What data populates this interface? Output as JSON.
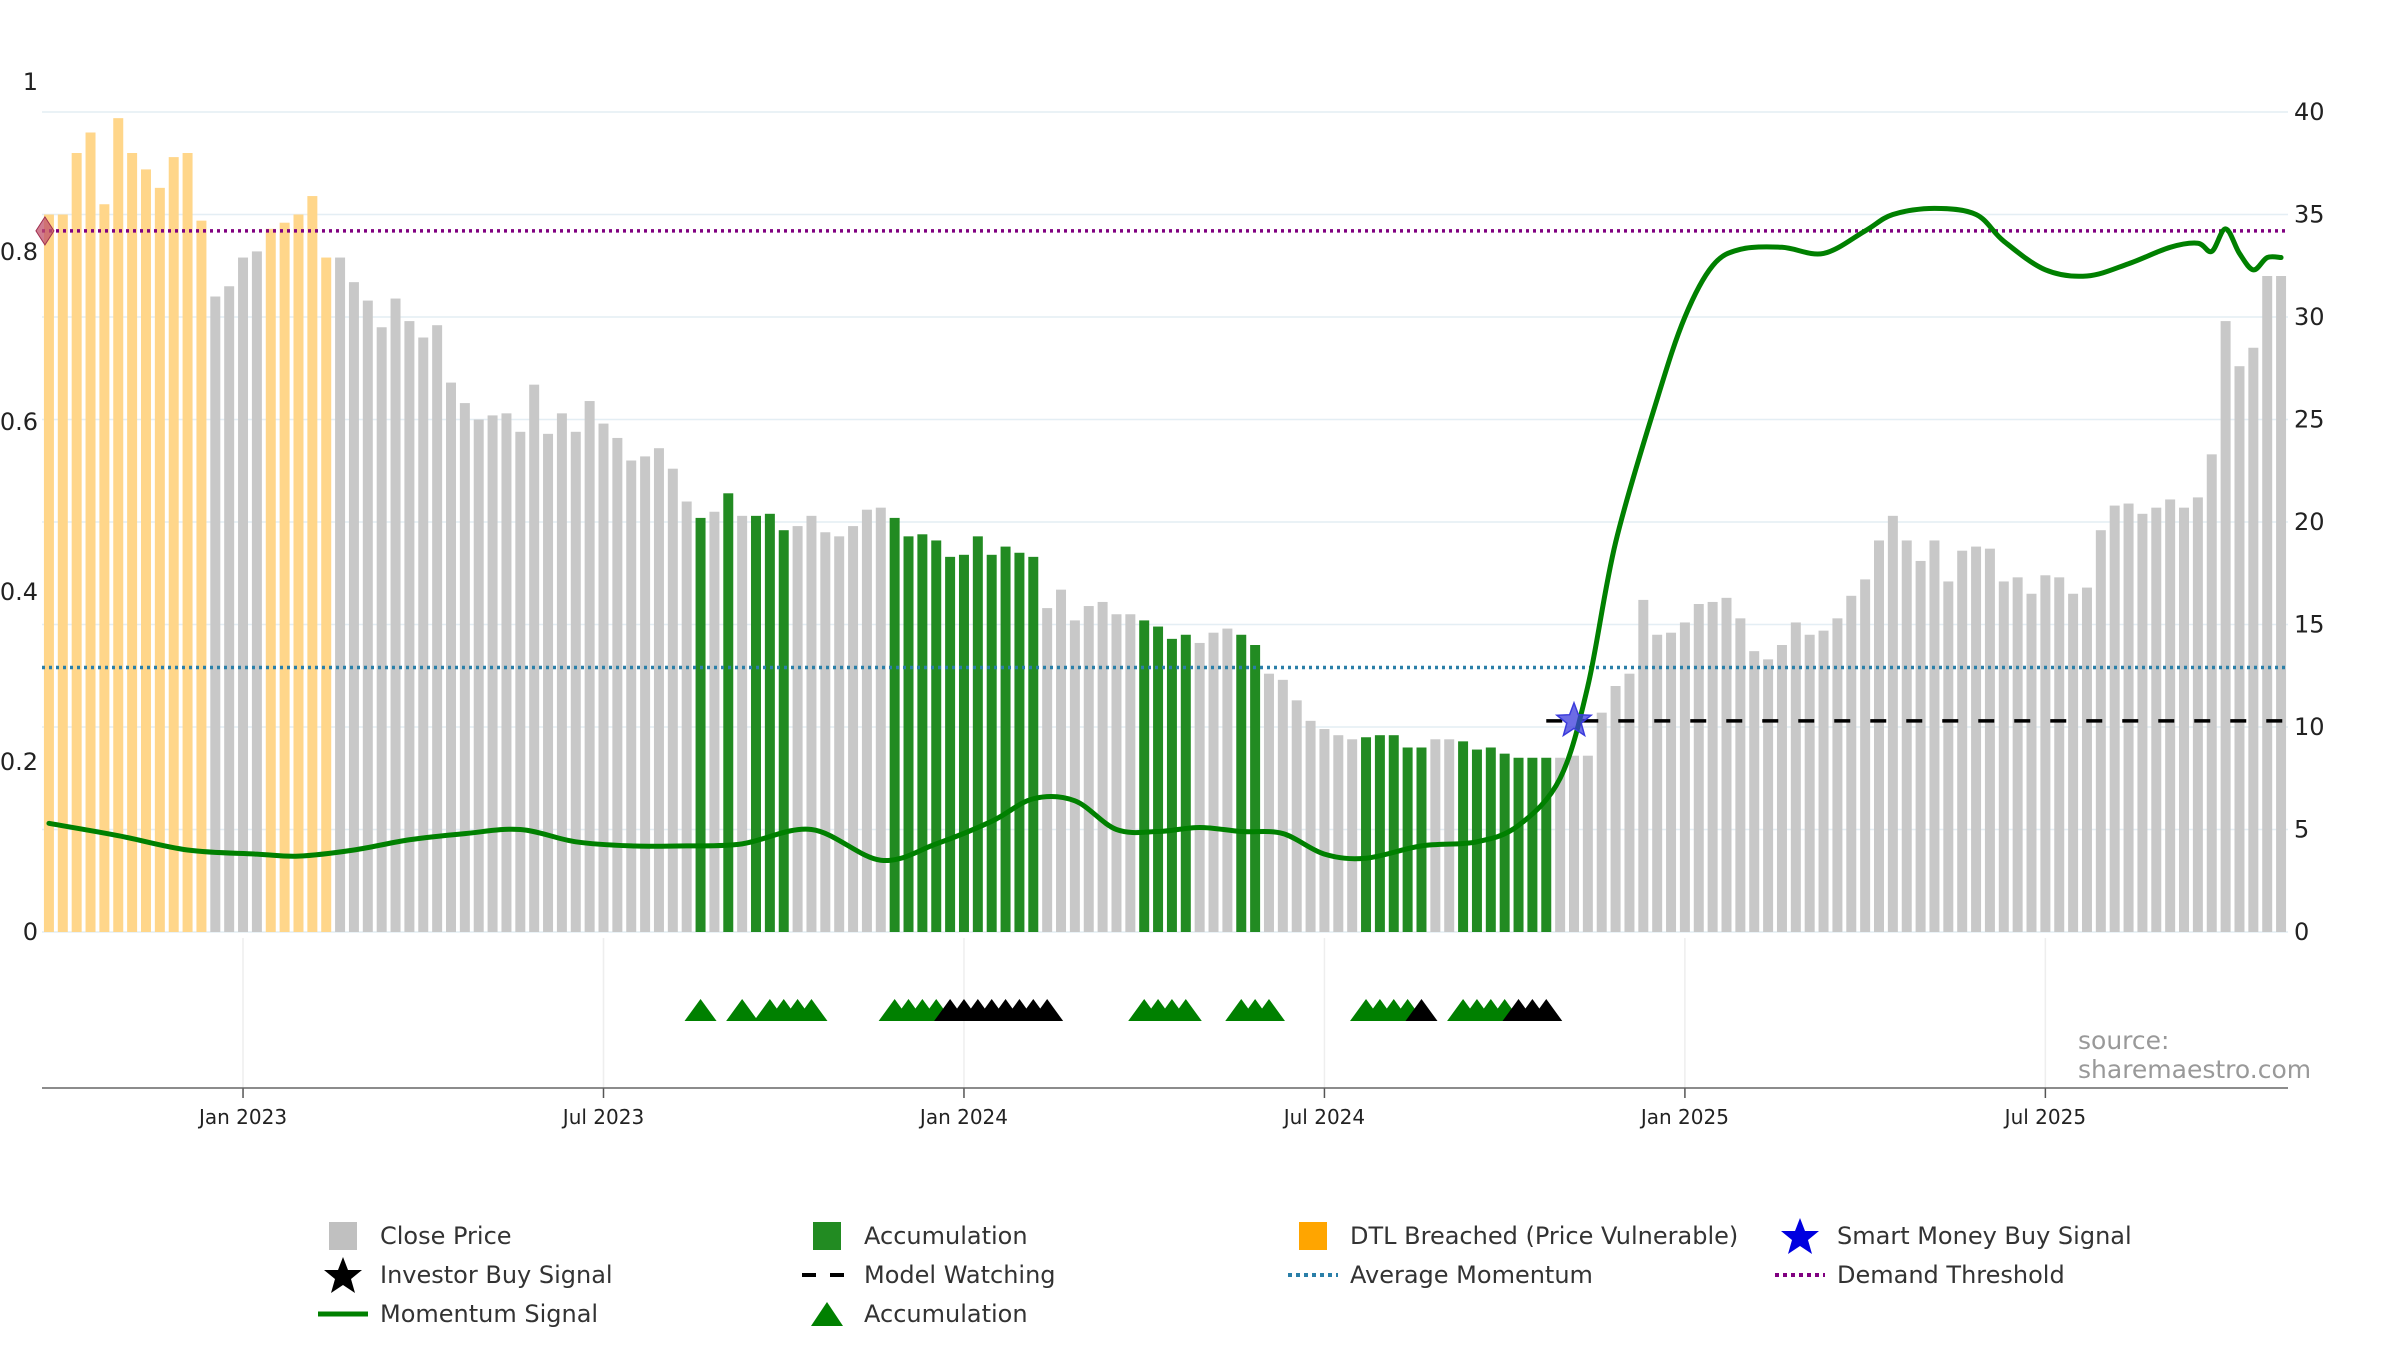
{
  "chart_data": {
    "type": "bar",
    "source_text": "source: sharemaestro.com",
    "y_left": {
      "ticks": [
        "0",
        "0.2",
        "0.4",
        "0.6",
        "0.8",
        "1"
      ],
      "lim": [
        0,
        1
      ]
    },
    "y_right": {
      "ticks": [
        "0",
        "5",
        "10",
        "15",
        "20",
        "25",
        "30",
        "35",
        "40"
      ],
      "lim": [
        0,
        40
      ]
    },
    "x_ticks": [
      {
        "label": "Jan 2023",
        "week": 14
      },
      {
        "label": "Jul 2023",
        "week": 40
      },
      {
        "label": "Jan 2024",
        "week": 66
      },
      {
        "label": "Jul 2024",
        "week": 92
      },
      {
        "label": "Jan 2025",
        "week": 118
      },
      {
        "label": "Jul 2025",
        "week": 144
      }
    ],
    "colors": {
      "close": "#c8c8c8",
      "accumulation": "#228B22",
      "dtl": "#FFD68A",
      "momentum": "#008000",
      "avg_momentum": "#2a7fa8",
      "demand": "#800080",
      "model_watching": "#000000",
      "smart_money": "#3b3bdc",
      "investor_buy": "#000000"
    },
    "close_price": [
      35,
      35,
      38,
      39,
      35.5,
      39.7,
      38,
      37.2,
      36.3,
      37.8,
      38,
      34.7,
      31,
      31.5,
      32.9,
      33.2,
      34.3,
      34.6,
      35,
      35.9,
      32.9,
      32.9,
      31.7,
      30.8,
      29.5,
      30.9,
      29.8,
      29,
      29.6,
      26.8,
      25.8,
      25,
      25.2,
      25.3,
      24.4,
      26.7,
      24.3,
      25.3,
      24.4,
      25.9,
      24.8,
      24.1,
      23,
      23.2,
      23.6,
      22.6,
      21,
      20.2,
      20.5,
      21.4,
      20.3,
      20.3,
      20.4,
      19.6,
      19.8,
      20.3,
      19.5,
      19.3,
      19.8,
      20.6,
      20.7,
      20.2,
      19.3,
      19.4,
      19.1,
      18.3,
      18.4,
      19.3,
      18.4,
      18.8,
      18.5,
      18.3,
      15.8,
      16.7,
      15.2,
      15.9,
      16.1,
      15.5,
      15.5,
      15.2,
      14.9,
      14.3,
      14.5,
      14.1,
      14.6,
      14.8,
      14.5,
      14.0,
      12.6,
      12.3,
      11.3,
      10.3,
      9.9,
      9.6,
      9.4,
      9.5,
      9.6,
      9.6,
      9.0,
      9.0,
      9.4,
      9.4,
      9.3,
      8.9,
      9.0,
      8.7,
      8.5,
      8.5,
      8.5,
      8.5,
      8.6,
      8.6,
      10.7,
      12.0,
      12.6,
      16.2,
      14.5,
      14.6,
      15.1,
      16.0,
      16.1,
      16.3,
      15.3,
      13.7,
      13.3,
      14.0,
      15.1,
      14.5,
      14.7,
      15.3,
      16.4,
      17.2,
      19.1,
      20.3,
      19.1,
      18.1,
      19.1,
      17.1,
      18.6,
      18.8,
      18.7,
      17.1,
      17.3,
      16.5,
      17.4,
      17.3,
      16.5,
      16.8,
      19.6,
      20.8,
      20.9,
      20.4,
      20.7,
      21.1,
      20.7,
      21.2,
      23.3,
      29.8,
      27.6,
      28.5,
      32.0,
      32.0
    ],
    "close_types": "DDDDDDDDDDDDCCCCCCDDDDCCCCCCCCCCCCCCCCCCCCCCCCCCAC",
    "dtl_weeks": [
      0,
      1,
      2,
      3,
      4,
      5,
      6,
      7,
      8,
      9,
      10,
      11,
      16,
      17,
      18,
      19,
      20
    ],
    "accumulation_weeks": [
      47,
      49,
      51,
      52,
      53,
      61,
      62,
      63,
      64,
      65,
      66,
      67,
      68,
      69,
      70,
      71,
      79,
      80,
      81,
      82,
      86,
      87,
      95,
      96,
      97,
      98,
      99,
      102,
      103,
      104,
      105,
      106,
      107,
      108
    ],
    "momentum_signal": [
      [
        0,
        5.3
      ],
      [
        5,
        4.7
      ],
      [
        10,
        4.0
      ],
      [
        15,
        3.8
      ],
      [
        18,
        3.7
      ],
      [
        22,
        4.0
      ],
      [
        26,
        4.5
      ],
      [
        30,
        4.8
      ],
      [
        34,
        5.0
      ],
      [
        38,
        4.4
      ],
      [
        42,
        4.2
      ],
      [
        46,
        4.2
      ],
      [
        50,
        4.3
      ],
      [
        55,
        5.0
      ],
      [
        60,
        3.5
      ],
      [
        64,
        4.3
      ],
      [
        68,
        5.4
      ],
      [
        71,
        6.5
      ],
      [
        74,
        6.4
      ],
      [
        77,
        5.0
      ],
      [
        80,
        4.9
      ],
      [
        83,
        5.1
      ],
      [
        86,
        4.9
      ],
      [
        89,
        4.8
      ],
      [
        92,
        3.8
      ],
      [
        95,
        3.6
      ],
      [
        99,
        4.2
      ],
      [
        103,
        4.4
      ],
      [
        106,
        5.2
      ],
      [
        109,
        7.5
      ],
      [
        111,
        12.0
      ],
      [
        113,
        19.0
      ],
      [
        116,
        26.0
      ],
      [
        118,
        30.0
      ],
      [
        120,
        32.5
      ],
      [
        122,
        33.3
      ],
      [
        125,
        33.4
      ],
      [
        128,
        33.1
      ],
      [
        131,
        34.2
      ],
      [
        133,
        35.0
      ],
      [
        136,
        35.3
      ],
      [
        139,
        35.0
      ],
      [
        141,
        33.7
      ],
      [
        144,
        32.3
      ],
      [
        147,
        32.0
      ],
      [
        150,
        32.6
      ],
      [
        153,
        33.4
      ],
      [
        155,
        33.6
      ],
      [
        156,
        33.2
      ],
      [
        157,
        34.3
      ],
      [
        158,
        33.1
      ],
      [
        159,
        32.3
      ],
      [
        160,
        32.9
      ],
      [
        161,
        32.9
      ]
    ],
    "avg_momentum": 12.9,
    "demand_threshold": 34.2,
    "model_watching": {
      "from_week": 108,
      "value": 10.3
    },
    "smart_money_signal": {
      "week": 110,
      "value": 10.3
    },
    "dtl_marker": {
      "week": 0,
      "value": 34.2
    },
    "accum_triangles": [
      47,
      50,
      52,
      53,
      54,
      55,
      61,
      62,
      63,
      64,
      79,
      80,
      81,
      82,
      86,
      87,
      88,
      95,
      96,
      97,
      98,
      102,
      103,
      104,
      105
    ],
    "investor_triangles": [
      65,
      66,
      67,
      68,
      69,
      70,
      71,
      72,
      99,
      106,
      107,
      108
    ],
    "legend": [
      {
        "label": "Close Price",
        "symbol": "square",
        "color": "#c0c0c0"
      },
      {
        "label": "Accumulation",
        "symbol": "square",
        "color": "#228B22"
      },
      {
        "label": "DTL Breached (Price Vulnerable)",
        "symbol": "square",
        "color": "#FFA500"
      },
      {
        "label": "Smart Money Buy Signal",
        "symbol": "star",
        "color": "#0000e0"
      },
      {
        "label": "Investor Buy Signal",
        "symbol": "star",
        "color": "#000000"
      },
      {
        "label": "Model Watching",
        "symbol": "dash",
        "color": "#000000"
      },
      {
        "label": "Average Momentum",
        "symbol": "dotted",
        "color": "#2a7fa8"
      },
      {
        "label": "Demand Threshold",
        "symbol": "dotted",
        "color": "#800080"
      },
      {
        "label": "Momentum Signal",
        "symbol": "line",
        "color": "#008000"
      },
      {
        "label": "Accumulation",
        "symbol": "triangle",
        "color": "#008000"
      }
    ]
  }
}
